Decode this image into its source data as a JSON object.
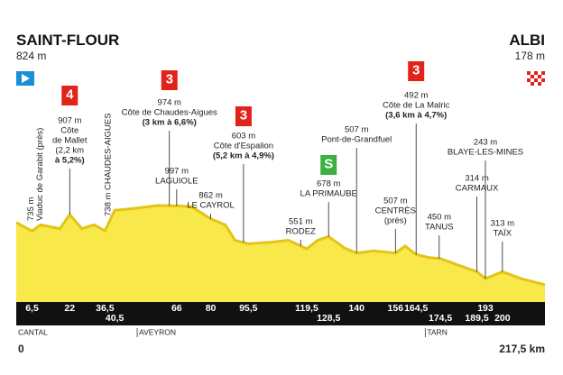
{
  "chart_data": {
    "type": "area",
    "start": {
      "name": "SAINT-FLOUR",
      "elevation": "824 m"
    },
    "finish": {
      "name": "ALBI",
      "elevation": "178 m"
    },
    "xlim": [
      0,
      217.5
    ],
    "xticks": [
      0,
      {
        "value": 217.5,
        "label": "217,5 km"
      }
    ],
    "ylim": [
      0,
      1100
    ],
    "color": "#f8e84a",
    "edge_color": "#e3c417",
    "x": [
      0,
      6.5,
      10,
      18,
      22,
      27,
      32,
      36.5,
      40.5,
      50,
      58,
      66,
      72,
      80,
      86,
      90,
      95.5,
      105,
      112,
      119.5,
      124,
      128.5,
      135,
      140,
      147,
      156,
      160,
      164.5,
      170,
      174.5,
      182,
      189.5,
      193,
      200,
      208,
      217.5
    ],
    "values": [
      824,
      735,
      800,
      760,
      907,
      760,
      800,
      738,
      950,
      974,
      1000,
      997,
      990,
      862,
      800,
      640,
      603,
      620,
      640,
      551,
      640,
      678,
      560,
      507,
      530,
      507,
      580,
      492,
      460,
      450,
      380,
      314,
      243,
      313,
      240,
      178
    ],
    "km_markers_top": [
      {
        "value": 6.5,
        "label": "6,5"
      },
      22,
      {
        "value": 36.5,
        "label": "36,5"
      },
      66,
      80,
      {
        "value": 95.5,
        "label": "95,5"
      },
      {
        "value": 119.5,
        "label": "119,5"
      },
      140,
      156,
      {
        "value": 164.5,
        "label": "164,5"
      },
      193
    ],
    "km_markers_bottom": [
      {
        "value": 40.5,
        "label": "40,5"
      },
      {
        "value": 128.5,
        "label": "128,5"
      },
      {
        "value": 174.5,
        "label": "174,5"
      },
      {
        "value": 189.5,
        "label": "189,5"
      },
      200
    ],
    "regions": [
      {
        "name": "CANTAL",
        "km": 0
      },
      {
        "name": "AVEYRON",
        "km": 50.5
      },
      {
        "name": "TARN",
        "km": 169
      }
    ],
    "annotations": [
      {
        "km": 6.5,
        "rotate": true,
        "lines": [
          "735 m",
          "Viaduc de Garabit (près)"
        ]
      },
      {
        "km": 22,
        "badge": "4",
        "badge_color": "#e2231a",
        "lines": [
          "907 m",
          "Côte",
          "de Mallet",
          "(2,2 km",
          "à 5,2%)"
        ]
      },
      {
        "km": 36.5,
        "rotate": true,
        "lines": [
          "738 m CHAUDES-AIGUES"
        ]
      },
      {
        "km": 63,
        "badge": "3",
        "badge_color": "#e2231a",
        "lines": [
          "974 m",
          "Côte de Chaudes-Aigues",
          "(3 km à 6,6%)"
        ]
      },
      {
        "km": 66,
        "lines": [
          "997 m",
          "LAGUIOLE"
        ]
      },
      {
        "km": 80,
        "lines": [
          "862 m",
          "LE CAYROL"
        ]
      },
      {
        "km": 93.5,
        "badge": "3",
        "badge_color": "#e2231a",
        "lines": [
          "603 m",
          "Côte d'Espalion",
          "(5,2 km à 4,9%)"
        ]
      },
      {
        "km": 117,
        "lines": [
          "551 m",
          "RODEZ"
        ]
      },
      {
        "km": 128.5,
        "badge": "S",
        "badge_color": "#3cb043",
        "lines": [
          "678 m",
          "LA PRIMAUBE"
        ]
      },
      {
        "km": 140,
        "lines": [
          "507 m",
          "Pont-de-Grandfuel"
        ]
      },
      {
        "km": 156,
        "lines": [
          "507 m",
          "CENTRÈS",
          "(près)"
        ]
      },
      {
        "km": 164.5,
        "badge": "3",
        "badge_color": "#e2231a",
        "lines": [
          "492 m",
          "Côte de La Malric",
          "(3,6 km à 4,7%)"
        ]
      },
      {
        "km": 174,
        "lines": [
          "450 m",
          "TANUS"
        ]
      },
      {
        "km": 189.5,
        "lines": [
          "314 m",
          "CARMAUX"
        ]
      },
      {
        "km": 193,
        "lines": [
          "243 m",
          "BLAYE-LES-MINES"
        ]
      },
      {
        "km": 200,
        "lines": [
          "313 m",
          "TAÏX"
        ]
      }
    ]
  }
}
